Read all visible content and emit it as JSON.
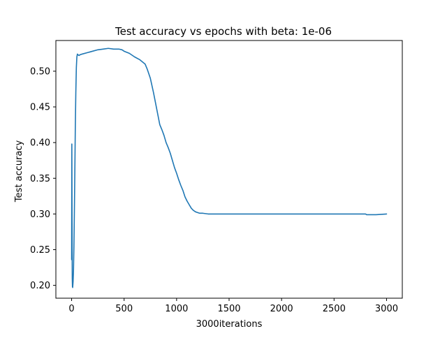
{
  "chart_data": {
    "type": "line",
    "title": "Test accuracy vs epochs with beta: 1e-06",
    "xlabel": "3000iterations",
    "ylabel": "Test accuracy",
    "xlim": [
      -150,
      3150
    ],
    "ylim": [
      0.182,
      0.543
    ],
    "x_ticks": [
      0,
      500,
      1000,
      1500,
      2000,
      2500,
      3000
    ],
    "x_tick_labels": [
      "0",
      "500",
      "1000",
      "1500",
      "2000",
      "2500",
      "3000"
    ],
    "y_ticks": [
      0.2,
      0.25,
      0.3,
      0.35,
      0.4,
      0.45,
      0.5
    ],
    "y_tick_labels": [
      "0.20",
      "0.25",
      "0.30",
      "0.35",
      "0.40",
      "0.45",
      "0.50"
    ],
    "grid": false,
    "line_color": "#1f77b4",
    "series": [
      {
        "x": [
          0,
          2,
          4,
          6,
          8,
          10,
          14,
          18,
          22,
          26,
          30,
          35,
          40,
          45,
          50,
          55,
          60,
          70,
          80,
          100,
          150,
          200,
          250,
          300,
          350,
          400,
          450,
          480,
          500,
          550,
          600,
          650,
          700,
          720,
          750,
          780,
          800,
          820,
          840,
          860,
          880,
          900,
          920,
          940,
          960,
          980,
          1000,
          1020,
          1040,
          1060,
          1080,
          1100,
          1120,
          1140,
          1160,
          1180,
          1200,
          1220,
          1250,
          1300,
          1350,
          1400,
          1500,
          1600,
          1800,
          2000,
          2200,
          2400,
          2600,
          2800,
          2810,
          2900,
          3000
        ],
        "y": [
          0.236,
          0.398,
          0.29,
          0.21,
          0.198,
          0.197,
          0.205,
          0.222,
          0.255,
          0.3,
          0.35,
          0.42,
          0.47,
          0.505,
          0.52,
          0.524,
          0.523,
          0.522,
          0.523,
          0.524,
          0.526,
          0.528,
          0.53,
          0.531,
          0.532,
          0.531,
          0.531,
          0.53,
          0.528,
          0.525,
          0.52,
          0.516,
          0.51,
          0.503,
          0.49,
          0.47,
          0.455,
          0.44,
          0.425,
          0.418,
          0.41,
          0.4,
          0.393,
          0.385,
          0.375,
          0.365,
          0.357,
          0.348,
          0.34,
          0.333,
          0.324,
          0.318,
          0.313,
          0.308,
          0.305,
          0.303,
          0.302,
          0.301,
          0.301,
          0.3,
          0.3,
          0.3,
          0.3,
          0.3,
          0.3,
          0.3,
          0.3,
          0.3,
          0.3,
          0.3,
          0.299,
          0.299,
          0.3
        ]
      }
    ]
  }
}
